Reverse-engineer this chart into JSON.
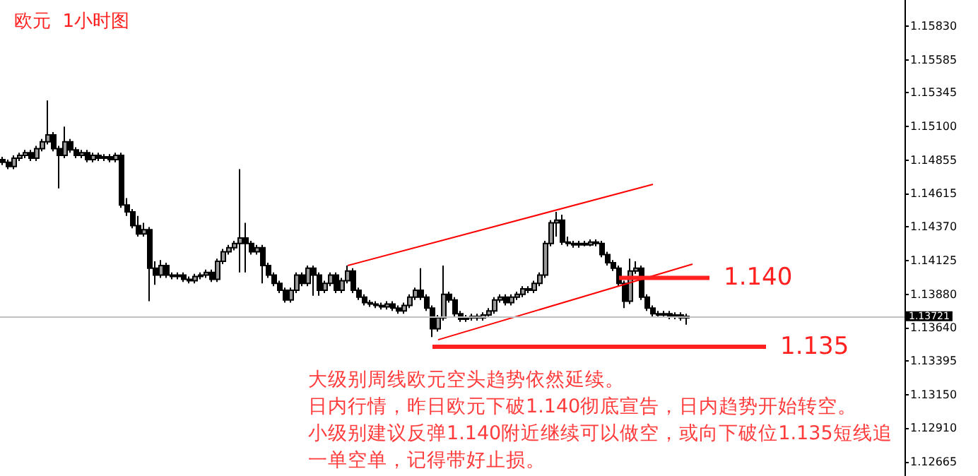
{
  "chart_data": {
    "type": "candlestick",
    "title": "欧元  1小时图",
    "annotations": [
      "大级别周线欧元空头趋势依然延续。",
      "日内行情，昨日欧元下破1.140彻底宣告，日内趋势开始转空。",
      "小级别建议反弹1.140附近继续可以做空，或向下破位1.135短线追",
      "一单空单，记得带好止损。"
    ],
    "color": "#000000",
    "categories": [
      null,
      null,
      null,
      null,
      null,
      null,
      null,
      null,
      null,
      null,
      null,
      null,
      null,
      null,
      null,
      null,
      null,
      null,
      null,
      null,
      null,
      null,
      null,
      null,
      null,
      null,
      null,
      null,
      null,
      null,
      null,
      null,
      null,
      null,
      null,
      null,
      null,
      null,
      null,
      null,
      null,
      null,
      null,
      null,
      null,
      null,
      null,
      null,
      null,
      null,
      null,
      null,
      null,
      null,
      null,
      null,
      null,
      null,
      null,
      null,
      null,
      null,
      null,
      null,
      null,
      null,
      null,
      null,
      null,
      null,
      null,
      null,
      null,
      null,
      null,
      null,
      null,
      null,
      null,
      null,
      null,
      null,
      null,
      null,
      null,
      null,
      null,
      null,
      null,
      null,
      null,
      null,
      null,
      null,
      null,
      null,
      null,
      null,
      null,
      null,
      null,
      null,
      null,
      null,
      null,
      null,
      null,
      null,
      null,
      null,
      null,
      null,
      null,
      null,
      null,
      null,
      null,
      null,
      null,
      null,
      null,
      null,
      null,
      null,
      null,
      null,
      null,
      null,
      null,
      null,
      null,
      null,
      null,
      null,
      null,
      null,
      null,
      null,
      null,
      null,
      null,
      null,
      null,
      null,
      null,
      null,
      null,
      null,
      null,
      null,
      null,
      null,
      null,
      null,
      null,
      null,
      null,
      null,
      null,
      null
    ],
    "ohlc": [
      [
        1.1486,
        1.1488,
        1.1482,
        1.1484
      ],
      [
        1.1484,
        1.1486,
        1.1479,
        1.1481
      ],
      [
        1.1481,
        1.1489,
        1.1479,
        1.1487
      ],
      [
        1.1487,
        1.1491,
        1.1485,
        1.1489
      ],
      [
        1.1489,
        1.1493,
        1.1487,
        1.1491
      ],
      [
        1.1491,
        1.1493,
        1.1485,
        1.1487
      ],
      [
        1.1487,
        1.1496,
        1.1485,
        1.1494
      ],
      [
        1.1494,
        1.1501,
        1.1492,
        1.1499
      ],
      [
        1.1499,
        1.1529,
        1.1497,
        1.1504
      ],
      [
        1.1504,
        1.1506,
        1.1492,
        1.1494
      ],
      [
        1.1494,
        1.1496,
        1.1465,
        1.1489
      ],
      [
        1.1489,
        1.151,
        1.1487,
        1.1499
      ],
      [
        1.1499,
        1.1501,
        1.1491,
        1.1493
      ],
      [
        1.1493,
        1.1495,
        1.1487,
        1.1489
      ],
      [
        1.1489,
        1.1493,
        1.1487,
        1.1491
      ],
      [
        1.1491,
        1.1493,
        1.1484,
        1.1486
      ],
      [
        1.1486,
        1.1491,
        1.1484,
        1.1489
      ],
      [
        1.1489,
        1.1491,
        1.1485,
        1.1487
      ],
      [
        1.1487,
        1.149,
        1.1485,
        1.1488
      ],
      [
        1.1488,
        1.149,
        1.1484,
        1.1486
      ],
      [
        1.1486,
        1.1491,
        1.1484,
        1.1489
      ],
      [
        1.1489,
        1.1491,
        1.1451,
        1.1453
      ],
      [
        1.1453,
        1.1458,
        1.1445,
        1.1448
      ],
      [
        1.1448,
        1.145,
        1.1436,
        1.1438
      ],
      [
        1.1438,
        1.1445,
        1.143,
        1.1432
      ],
      [
        1.1432,
        1.144,
        1.143,
        1.1435
      ],
      [
        1.1435,
        1.1437,
        1.1383,
        1.1407
      ],
      [
        1.1407,
        1.1412,
        1.1395,
        1.1402
      ],
      [
        1.1402,
        1.1413,
        1.14,
        1.1409
      ],
      [
        1.1409,
        1.1411,
        1.14,
        1.1402
      ],
      [
        1.1402,
        1.1404,
        1.1399,
        1.1401
      ],
      [
        1.1401,
        1.1404,
        1.1399,
        1.1402
      ],
      [
        1.1402,
        1.1404,
        1.1397,
        1.1399
      ],
      [
        1.1399,
        1.1401,
        1.1396,
        1.1398
      ],
      [
        1.1398,
        1.1403,
        1.1396,
        1.1401
      ],
      [
        1.1401,
        1.1404,
        1.1399,
        1.1402
      ],
      [
        1.1402,
        1.1406,
        1.14,
        1.1404
      ],
      [
        1.1404,
        1.1406,
        1.1397,
        1.1399
      ],
      [
        1.1399,
        1.1414,
        1.1397,
        1.1412
      ],
      [
        1.1412,
        1.1421,
        1.141,
        1.1419
      ],
      [
        1.1419,
        1.1424,
        1.1417,
        1.1422
      ],
      [
        1.1422,
        1.1427,
        1.142,
        1.1425
      ],
      [
        1.1425,
        1.1479,
        1.1404,
        1.1429
      ],
      [
        1.1429,
        1.144,
        1.1404,
        1.1425
      ],
      [
        1.1425,
        1.1427,
        1.1417,
        1.1419
      ],
      [
        1.1419,
        1.1424,
        1.1417,
        1.1422
      ],
      [
        1.1422,
        1.1424,
        1.1396,
        1.1409
      ],
      [
        1.1409,
        1.1411,
        1.14,
        1.1402
      ],
      [
        1.1402,
        1.1404,
        1.1394,
        1.1396
      ],
      [
        1.1396,
        1.1398,
        1.1389,
        1.1391
      ],
      [
        1.1391,
        1.1393,
        1.1382,
        1.1384
      ],
      [
        1.1384,
        1.1393,
        1.1382,
        1.1391
      ],
      [
        1.1391,
        1.1404,
        1.1389,
        1.1402
      ],
      [
        1.1402,
        1.1404,
        1.1394,
        1.1396
      ],
      [
        1.1396,
        1.1409,
        1.1394,
        1.1407
      ],
      [
        1.1407,
        1.1409,
        1.1387,
        1.1402
      ],
      [
        1.1402,
        1.1404,
        1.1387,
        1.1391
      ],
      [
        1.1391,
        1.1398,
        1.1389,
        1.1396
      ],
      [
        1.1396,
        1.1404,
        1.1394,
        1.1402
      ],
      [
        1.1402,
        1.1404,
        1.1389,
        1.1391
      ],
      [
        1.1391,
        1.14,
        1.1389,
        1.1398
      ],
      [
        1.1398,
        1.1409,
        1.1396,
        1.1405
      ],
      [
        1.1405,
        1.1407,
        1.1389,
        1.1391
      ],
      [
        1.1391,
        1.1393,
        1.1384,
        1.1386
      ],
      [
        1.1386,
        1.1388,
        1.138,
        1.1382
      ],
      [
        1.1382,
        1.1384,
        1.1379,
        1.1381
      ],
      [
        1.1381,
        1.1383,
        1.1378,
        1.138
      ],
      [
        1.138,
        1.1382,
        1.1377,
        1.1379
      ],
      [
        1.1379,
        1.1383,
        1.1377,
        1.1381
      ],
      [
        1.1381,
        1.1383,
        1.1376,
        1.1378
      ],
      [
        1.1378,
        1.138,
        1.1374,
        1.1376
      ],
      [
        1.1376,
        1.1382,
        1.1374,
        1.138
      ],
      [
        1.138,
        1.1388,
        1.1378,
        1.1386
      ],
      [
        1.1386,
        1.1393,
        1.1384,
        1.1391
      ],
      [
        1.1391,
        1.1407,
        1.1384,
        1.1386
      ],
      [
        1.1386,
        1.1388,
        1.1376,
        1.1378
      ],
      [
        1.1378,
        1.138,
        1.1357,
        1.1363
      ],
      [
        1.1363,
        1.1373,
        1.1361,
        1.1371
      ],
      [
        1.1371,
        1.1409,
        1.1369,
        1.1388
      ],
      [
        1.1388,
        1.139,
        1.1382,
        1.1384
      ],
      [
        1.1384,
        1.1386,
        1.1372,
        1.1374
      ],
      [
        1.1374,
        1.1376,
        1.1368,
        1.137
      ],
      [
        1.137,
        1.1373,
        1.1368,
        1.1371
      ],
      [
        1.1371,
        1.1374,
        1.1369,
        1.1372
      ],
      [
        1.1372,
        1.1374,
        1.1369,
        1.1371
      ],
      [
        1.1371,
        1.1375,
        1.1369,
        1.1373
      ],
      [
        1.1373,
        1.1378,
        1.1371,
        1.1376
      ],
      [
        1.1376,
        1.1386,
        1.1374,
        1.1384
      ],
      [
        1.1384,
        1.1388,
        1.1382,
        1.1386
      ],
      [
        1.1386,
        1.1388,
        1.138,
        1.1382
      ],
      [
        1.1382,
        1.1388,
        1.138,
        1.1386
      ],
      [
        1.1386,
        1.139,
        1.1384,
        1.1388
      ],
      [
        1.1388,
        1.1394,
        1.1386,
        1.1392
      ],
      [
        1.1392,
        1.1394,
        1.1389,
        1.1391
      ],
      [
        1.1391,
        1.1398,
        1.1389,
        1.1396
      ],
      [
        1.1396,
        1.1404,
        1.1394,
        1.1402
      ],
      [
        1.1402,
        1.1427,
        1.14,
        1.1425
      ],
      [
        1.1425,
        1.1442,
        1.1423,
        1.144
      ],
      [
        1.144,
        1.1448,
        1.143,
        1.1442
      ],
      [
        1.1442,
        1.1446,
        1.1424,
        1.1426
      ],
      [
        1.1426,
        1.143,
        1.1423,
        1.1425
      ],
      [
        1.1425,
        1.1427,
        1.1422,
        1.1424
      ],
      [
        1.1424,
        1.1427,
        1.1422,
        1.1425
      ],
      [
        1.1425,
        1.1427,
        1.1423,
        1.1424
      ],
      [
        1.1424,
        1.1428,
        1.1423,
        1.1426
      ],
      [
        1.1426,
        1.1428,
        1.1423,
        1.1425
      ],
      [
        1.1425,
        1.1427,
        1.1415,
        1.1417
      ],
      [
        1.1417,
        1.1419,
        1.1409,
        1.1411
      ],
      [
        1.1411,
        1.1413,
        1.1405,
        1.1407
      ],
      [
        1.1407,
        1.1409,
        1.1394,
        1.1396
      ],
      [
        1.1396,
        1.1398,
        1.1378,
        1.1383
      ],
      [
        1.1383,
        1.1414,
        1.1381,
        1.1405
      ],
      [
        1.1405,
        1.1412,
        1.1403,
        1.1407
      ],
      [
        1.1407,
        1.1409,
        1.1384,
        1.1386
      ],
      [
        1.1386,
        1.1388,
        1.1376,
        1.1378
      ],
      [
        1.1378,
        1.138,
        1.1372,
        1.1374
      ],
      [
        1.1374,
        1.1376,
        1.1371,
        1.1373
      ],
      [
        1.1373,
        1.1376,
        1.1371,
        1.1374
      ],
      [
        1.1374,
        1.1376,
        1.137,
        1.1372
      ],
      [
        1.1372,
        1.1375,
        1.137,
        1.1373
      ],
      [
        1.1373,
        1.1375,
        1.1369,
        1.1371
      ],
      [
        1.1371,
        1.1374,
        1.1366,
        1.1372
      ],
      null,
      null,
      null,
      null,
      null,
      null,
      null,
      null,
      null,
      null,
      null,
      null,
      null,
      null,
      null,
      null,
      null,
      null,
      null,
      null,
      null,
      null,
      null,
      null,
      null,
      null,
      null,
      null,
      null,
      null,
      null,
      null,
      null,
      null,
      null,
      null,
      null,
      null
    ],
    "series": [
      {
        "type": "line",
        "color": "#ff0000",
        "values": [
          null,
          null,
          null,
          null,
          null,
          null,
          null,
          null,
          null,
          null,
          null,
          null,
          null,
          null,
          null,
          null,
          null,
          null,
          null,
          null,
          null,
          null,
          null,
          null,
          null,
          null,
          null,
          null,
          null,
          null,
          null,
          null,
          null,
          null,
          null,
          null,
          null,
          null,
          null,
          null,
          null,
          null,
          null,
          null,
          null,
          null,
          null,
          null,
          null,
          null,
          null,
          null,
          null,
          null,
          null,
          null,
          null,
          null,
          null,
          null,
          null,
          1.1409,
          null,
          null,
          null,
          null,
          null,
          null,
          null,
          null,
          null,
          null,
          null,
          null,
          null,
          null,
          null,
          null,
          null,
          null,
          null,
          null,
          null,
          null,
          null,
          null,
          null,
          null,
          null,
          null,
          null,
          null,
          null,
          null,
          null,
          null,
          null,
          null,
          null,
          null,
          null,
          null,
          null,
          null,
          null,
          null,
          null,
          null,
          null,
          null,
          null,
          null,
          null,
          null,
          null,
          1.1468,
          null,
          null,
          null,
          null,
          null,
          null,
          null,
          null,
          null,
          null,
          null,
          null,
          null,
          null,
          null,
          null,
          null,
          null,
          null,
          null,
          null,
          null,
          null,
          null,
          null,
          null,
          null,
          null,
          null,
          null,
          null,
          null,
          null,
          null,
          null,
          null,
          null,
          null,
          null,
          null,
          null,
          null,
          null,
          null
        ]
      },
      {
        "type": "line",
        "color": "#ff0000",
        "values": [
          null,
          null,
          null,
          null,
          null,
          null,
          null,
          null,
          null,
          null,
          null,
          null,
          null,
          null,
          null,
          null,
          null,
          null,
          null,
          null,
          null,
          null,
          null,
          null,
          null,
          null,
          null,
          null,
          null,
          null,
          null,
          null,
          null,
          null,
          null,
          null,
          null,
          null,
          null,
          null,
          null,
          null,
          null,
          null,
          null,
          null,
          null,
          null,
          null,
          null,
          null,
          null,
          null,
          null,
          null,
          null,
          null,
          null,
          null,
          null,
          null,
          null,
          null,
          null,
          null,
          null,
          null,
          null,
          null,
          null,
          null,
          null,
          null,
          null,
          null,
          null,
          null,
          1.1355,
          null,
          null,
          null,
          null,
          null,
          null,
          null,
          null,
          null,
          null,
          null,
          null,
          null,
          null,
          null,
          null,
          null,
          null,
          null,
          null,
          null,
          null,
          null,
          null,
          null,
          null,
          null,
          null,
          null,
          null,
          null,
          null,
          null,
          null,
          null,
          null,
          null,
          null,
          null,
          null,
          null,
          null,
          null,
          null,
          1.141,
          null,
          null,
          null,
          null,
          null,
          null,
          null,
          null,
          null,
          null,
          null,
          null,
          null,
          null,
          null,
          null,
          null,
          null,
          null,
          null,
          null,
          null,
          null,
          null,
          null,
          null,
          null,
          null,
          null,
          null,
          null,
          null,
          null,
          null,
          null,
          null,
          null
        ]
      },
      {
        "type": "line",
        "name": "1.140",
        "color": "#ff2020",
        "values": [
          null,
          null,
          null,
          null,
          null,
          null,
          null,
          null,
          null,
          null,
          null,
          null,
          null,
          null,
          null,
          null,
          null,
          null,
          null,
          null,
          null,
          null,
          null,
          null,
          null,
          null,
          null,
          null,
          null,
          null,
          null,
          null,
          null,
          null,
          null,
          null,
          null,
          null,
          null,
          null,
          null,
          null,
          null,
          null,
          null,
          null,
          null,
          null,
          null,
          null,
          null,
          null,
          null,
          null,
          null,
          null,
          null,
          null,
          null,
          null,
          null,
          null,
          null,
          null,
          null,
          null,
          null,
          null,
          null,
          null,
          null,
          null,
          null,
          null,
          null,
          null,
          null,
          null,
          null,
          null,
          null,
          null,
          null,
          null,
          null,
          null,
          null,
          null,
          null,
          null,
          null,
          null,
          null,
          null,
          null,
          null,
          null,
          null,
          null,
          null,
          null,
          null,
          null,
          null,
          null,
          null,
          null,
          null,
          null,
          1.14,
          null,
          null,
          null,
          null,
          null,
          null,
          null,
          null,
          null,
          null,
          null,
          null,
          null,
          null,
          null,
          1.14,
          null,
          null,
          null,
          null,
          null,
          null,
          null,
          null,
          null,
          null,
          null,
          null,
          null,
          null,
          null,
          null,
          null,
          null,
          null,
          null,
          null,
          null,
          null,
          null,
          null,
          null,
          null,
          null,
          null,
          null,
          null,
          null,
          null,
          null
        ]
      },
      {
        "type": "line",
        "name": "1.135",
        "color": "#ff2020",
        "values": [
          null,
          null,
          null,
          null,
          null,
          null,
          null,
          null,
          null,
          null,
          null,
          null,
          null,
          null,
          null,
          null,
          null,
          null,
          null,
          null,
          null,
          null,
          null,
          null,
          null,
          null,
          null,
          null,
          null,
          null,
          null,
          null,
          null,
          null,
          null,
          null,
          null,
          null,
          null,
          null,
          null,
          null,
          null,
          null,
          null,
          null,
          null,
          null,
          null,
          null,
          null,
          null,
          null,
          null,
          null,
          null,
          null,
          null,
          null,
          null,
          null,
          null,
          null,
          null,
          null,
          null,
          null,
          null,
          null,
          null,
          null,
          null,
          null,
          null,
          null,
          null,
          1.135,
          null,
          null,
          null,
          null,
          null,
          null,
          null,
          null,
          null,
          null,
          null,
          null,
          null,
          null,
          null,
          null,
          null,
          null,
          null,
          null,
          null,
          null,
          null,
          null,
          null,
          null,
          null,
          null,
          null,
          null,
          null,
          null,
          null,
          null,
          null,
          null,
          null,
          null,
          null,
          null,
          null,
          null,
          null,
          null,
          null,
          null,
          null,
          null,
          null,
          null,
          null,
          null,
          null,
          null,
          null,
          null,
          null,
          null,
          1.135,
          null,
          null,
          null,
          null,
          null,
          null,
          null,
          null,
          null,
          null,
          null,
          null,
          null,
          null,
          null,
          null,
          null,
          null,
          null,
          null,
          null,
          null,
          null,
          null
        ]
      }
    ],
    "ref_lines": [
      {
        "axis": "y",
        "value": 1.13721,
        "label": "1.13721",
        "color": "#c0c0c0"
      }
    ],
    "ylim": [
      1.1256,
      1.1602
    ],
    "yticks": [
      {
        "value": 1.1583,
        "label": "1.15830"
      },
      {
        "value": 1.15585,
        "label": "1.15585"
      },
      {
        "value": 1.15345,
        "label": "1.15345"
      },
      {
        "value": 1.151,
        "label": "1.15100"
      },
      {
        "value": 1.14855,
        "label": "1.14855"
      },
      {
        "value": 1.14615,
        "label": "1.14615"
      },
      {
        "value": 1.1437,
        "label": "1.14370"
      },
      {
        "value": 1.14125,
        "label": "1.14125"
      },
      {
        "value": 1.1388,
        "label": "1.13880"
      },
      {
        "value": 1.1364,
        "label": "1.13640"
      },
      {
        "value": 1.13395,
        "label": "1.13395"
      },
      {
        "value": 1.1315,
        "label": "1.13150"
      },
      {
        "value": 1.1291,
        "label": "1.12910"
      },
      {
        "value": 1.12665,
        "label": "1.12665"
      }
    ],
    "tick_labels": "y",
    "grid": false,
    "marker": "none",
    "line_style": "solid"
  }
}
